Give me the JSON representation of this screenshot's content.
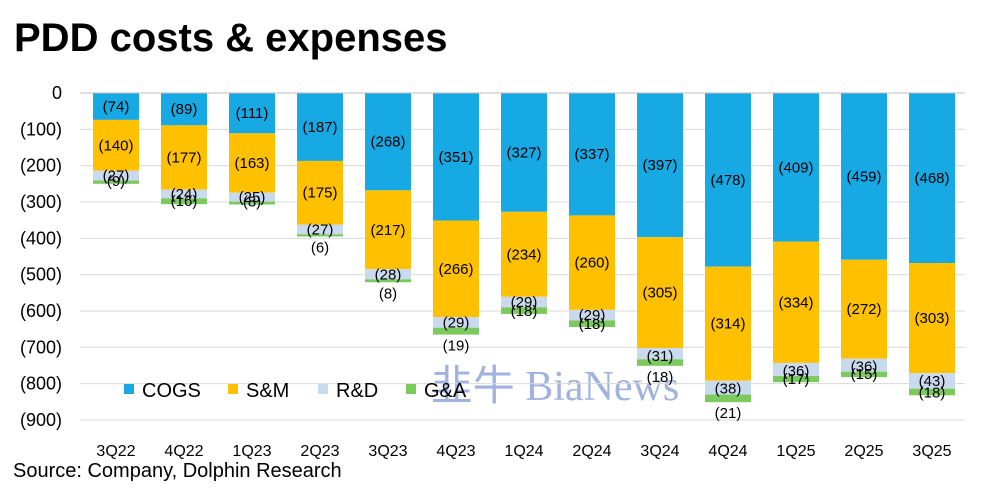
{
  "title": "PDD costs & expenses",
  "source": "Source: Company,  Dolphin Research",
  "watermark": "韭牛 BiaNews",
  "chart_data": {
    "type": "bar",
    "stacked": true,
    "title": "PDD costs & expenses",
    "categories": [
      "3Q22",
      "4Q22",
      "1Q23",
      "2Q23",
      "3Q23",
      "4Q23",
      "1Q24",
      "2Q24",
      "3Q24",
      "4Q24",
      "1Q25",
      "2Q25",
      "3Q25"
    ],
    "series": [
      {
        "name": "COGS",
        "color": "#16A9E3",
        "values": [
          -74,
          -89,
          -111,
          -187,
          -268,
          -351,
          -327,
          -337,
          -397,
          -478,
          -409,
          -459,
          -468
        ],
        "labels": [
          "(74)",
          "(89)",
          "(111)",
          "(187)",
          "(268)",
          "(351)",
          "(327)",
          "(337)",
          "(397)",
          "(478)",
          "(409)",
          "(459)",
          "(468)"
        ]
      },
      {
        "name": "S&M",
        "color": "#FFC000",
        "values": [
          -140,
          -177,
          -163,
          -175,
          -217,
          -266,
          -234,
          -260,
          -305,
          -314,
          -334,
          -272,
          -303
        ],
        "labels": [
          "(140)",
          "(177)",
          "(163)",
          "(175)",
          "(217)",
          "(266)",
          "(234)",
          "(260)",
          "(305)",
          "(314)",
          "(334)",
          "(272)",
          "(303)"
        ]
      },
      {
        "name": "R&D",
        "color": "#C9DAEE",
        "values": [
          -27,
          -24,
          -25,
          -27,
          -28,
          -29,
          -29,
          -29,
          -31,
          -38,
          -36,
          -36,
          -43
        ],
        "labels": [
          "(27)",
          "(24)",
          "(25)",
          "(27)",
          "(28)",
          "(29)",
          "(29)",
          "(29)",
          "(31)",
          "(38)",
          "(36)",
          "(36)",
          "(43)"
        ]
      },
      {
        "name": "G&A",
        "color": "#7CC95D",
        "values": [
          -9,
          -16,
          -8,
          -6,
          -8,
          -19,
          -18,
          -18,
          -18,
          -21,
          -17,
          -15,
          -18
        ],
        "labels": [
          "(9)",
          "(16)",
          "(8)",
          "(6)",
          "(8)",
          "(19)",
          "(18)",
          "(18)",
          "(18)",
          "(21)",
          "(17)",
          "(15)",
          "(18)"
        ]
      }
    ],
    "ylim": [
      -900,
      0
    ],
    "yticks": [
      0,
      -100,
      -200,
      -300,
      -400,
      -500,
      -600,
      -700,
      -800,
      -900
    ],
    "ytick_labels": [
      "0",
      "(100)",
      "(200)",
      "(300)",
      "(400)",
      "(500)",
      "(600)",
      "(700)",
      "(800)",
      "(900)"
    ],
    "xlabel": "",
    "ylabel": "",
    "legend": "bottom-left"
  }
}
